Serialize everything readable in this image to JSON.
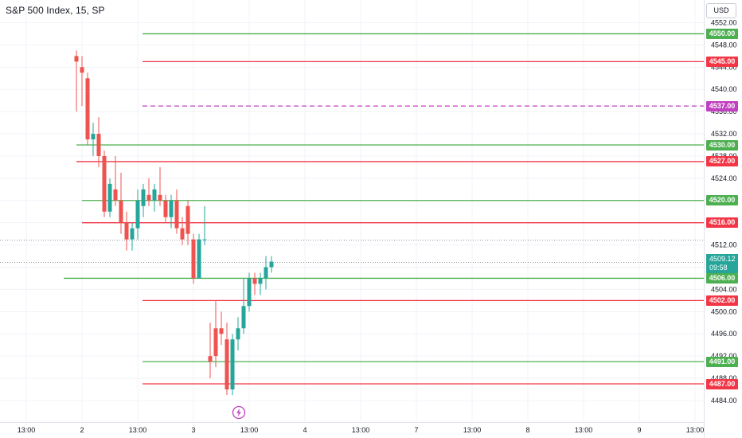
{
  "header": {
    "title": "S&P 500 Index, 15, SP",
    "currency": "USD"
  },
  "last_price": {
    "price": "4509.12",
    "countdown": "09:58",
    "color": "#26a69a"
  },
  "icons": {
    "bolt": "lightning-bolt-icon"
  },
  "colors": {
    "bull": "#26a69a",
    "bear": "#ef5350",
    "support": "#4caf50",
    "resistance": "#f23645",
    "pivot": "#c041c0"
  },
  "chart_data": {
    "type": "candlestick",
    "title": "S&P 500 Index, 15, SP",
    "ylim": [
      4482,
      4553
    ],
    "y_ticks": [
      "4484.00",
      "4488.00",
      "4492.00",
      "4496.00",
      "4500.00",
      "4504.00",
      "4508.00",
      "4512.00",
      "4516.00",
      "4520.00",
      "4524.00",
      "4528.00",
      "4532.00",
      "4536.00",
      "4540.00",
      "4544.00",
      "4548.00",
      "4552.00"
    ],
    "x_ticks": [
      {
        "label": "13:00",
        "bar": -9
      },
      {
        "label": "2",
        "bar": 1
      },
      {
        "label": "13:00",
        "bar": 11
      },
      {
        "label": "3",
        "bar": 21
      },
      {
        "label": "13:00",
        "bar": 31
      },
      {
        "label": "4",
        "bar": 41
      },
      {
        "label": "13:00",
        "bar": 51
      },
      {
        "label": "7",
        "bar": 61
      },
      {
        "label": "13:00",
        "bar": 71
      },
      {
        "label": "8",
        "bar": 81
      },
      {
        "label": "13:00",
        "bar": 91
      },
      {
        "label": "9",
        "bar": 101
      },
      {
        "label": "13:00",
        "bar": 111
      }
    ],
    "candles": [
      {
        "o": 4546,
        "h": 4547,
        "l": 4536,
        "c": 4545
      },
      {
        "o": 4544,
        "h": 4546,
        "l": 4537,
        "c": 4543
      },
      {
        "o": 4542,
        "h": 4543,
        "l": 4530,
        "c": 4531
      },
      {
        "o": 4531,
        "h": 4534,
        "l": 4528,
        "c": 4532
      },
      {
        "o": 4532,
        "h": 4535,
        "l": 4526,
        "c": 4528
      },
      {
        "o": 4528,
        "h": 4529,
        "l": 4517,
        "c": 4518
      },
      {
        "o": 4518,
        "h": 4524,
        "l": 4517,
        "c": 4523
      },
      {
        "o": 4522,
        "h": 4528,
        "l": 4519,
        "c": 4520
      },
      {
        "o": 4520,
        "h": 4525,
        "l": 4514,
        "c": 4516
      },
      {
        "o": 4516,
        "h": 4518,
        "l": 4511,
        "c": 4513
      },
      {
        "o": 4513,
        "h": 4516,
        "l": 4511,
        "c": 4515
      },
      {
        "o": 4515,
        "h": 4522,
        "l": 4513,
        "c": 4520
      },
      {
        "o": 4519,
        "h": 4523,
        "l": 4517,
        "c": 4522
      },
      {
        "o": 4521,
        "h": 4524,
        "l": 4519,
        "c": 4520
      },
      {
        "o": 4520,
        "h": 4523,
        "l": 4518,
        "c": 4522
      },
      {
        "o": 4521,
        "h": 4526,
        "l": 4519,
        "c": 4520
      },
      {
        "o": 4520,
        "h": 4521,
        "l": 4516,
        "c": 4517
      },
      {
        "o": 4517,
        "h": 4521,
        "l": 4515,
        "c": 4520
      },
      {
        "o": 4520,
        "h": 4522,
        "l": 4514,
        "c": 4515
      },
      {
        "o": 4515,
        "h": 4517,
        "l": 4512,
        "c": 4513
      },
      {
        "o": 4519,
        "h": 4520,
        "l": 4512,
        "c": 4514
      },
      {
        "o": 4513,
        "h": 4514,
        "l": 4505,
        "c": 4506
      },
      {
        "o": 4506,
        "h": 4514,
        "l": 4506,
        "c": 4513
      },
      {
        "o": 4513,
        "h": 4519,
        "l": 4512,
        "c": 4513
      },
      {
        "o": 4492,
        "h": 4498,
        "l": 4488,
        "c": 4491
      },
      {
        "o": 4497,
        "h": 4502,
        "l": 4490,
        "c": 4492
      },
      {
        "o": 4497,
        "h": 4500,
        "l": 4494,
        "c": 4496
      },
      {
        "o": 4495,
        "h": 4498,
        "l": 4485,
        "c": 4486
      },
      {
        "o": 4486,
        "h": 4496,
        "l": 4485,
        "c": 4495
      },
      {
        "o": 4495,
        "h": 4499,
        "l": 4493,
        "c": 4497
      },
      {
        "o": 4497,
        "h": 4506,
        "l": 4496,
        "c": 4501
      },
      {
        "o": 4501,
        "h": 4507,
        "l": 4500,
        "c": 4506
      },
      {
        "o": 4506,
        "h": 4507,
        "l": 4503,
        "c": 4505
      },
      {
        "o": 4505,
        "h": 4507,
        "l": 4503,
        "c": 4506
      },
      {
        "o": 4506,
        "h": 4510,
        "l": 4504,
        "c": 4508
      },
      {
        "o": 4508,
        "h": 4510,
        "l": 4507,
        "c": 4509
      }
    ],
    "levels": [
      {
        "price": 4550,
        "label": "4550.00",
        "kind": "support",
        "start_bar": 13
      },
      {
        "price": 4545,
        "label": "4545.00",
        "kind": "resistance",
        "start_bar": 13
      },
      {
        "price": 4537,
        "label": "4537.00",
        "kind": "pivot",
        "start_bar": 13
      },
      {
        "price": 4530,
        "label": "4530.00",
        "kind": "support",
        "start_bar": 0
      },
      {
        "price": 4527,
        "label": "4527.00",
        "kind": "resistance",
        "start_bar": 0
      },
      {
        "price": 4520,
        "label": "4520.00",
        "kind": "support",
        "start_bar": 1
      },
      {
        "price": 4516,
        "label": "4516.00",
        "kind": "resistance",
        "start_bar": 1
      },
      {
        "price": 4506,
        "label": "4506.00",
        "kind": "support",
        "start_bar": -2
      },
      {
        "price": 4502,
        "label": "4502.00",
        "kind": "resistance",
        "start_bar": 13
      },
      {
        "price": 4491,
        "label": "4491.00",
        "kind": "support",
        "start_bar": 13
      },
      {
        "price": 4487,
        "label": "4487.00",
        "kind": "resistance",
        "start_bar": 13
      }
    ],
    "crosshair_price": 4513,
    "grid": true
  }
}
